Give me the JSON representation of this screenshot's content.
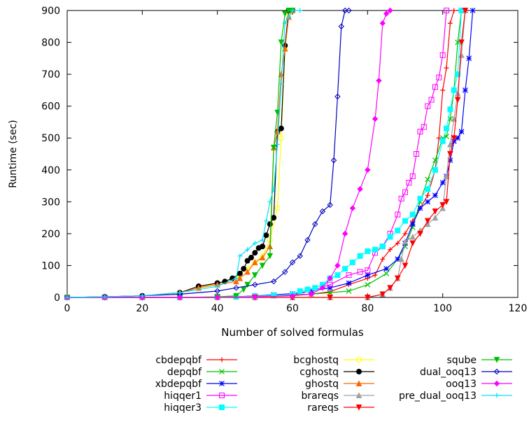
{
  "chart_data": {
    "type": "line",
    "title": "",
    "xlabel": "Number of solved formulas",
    "ylabel": "Runtime (sec)",
    "xlim": [
      0,
      120
    ],
    "ylim": [
      0,
      900
    ],
    "xticks": [
      0,
      20,
      40,
      60,
      80,
      100,
      120
    ],
    "yticks": [
      0,
      100,
      200,
      300,
      400,
      500,
      600,
      700,
      800,
      900
    ],
    "x_tick_labels": [
      "0",
      "20",
      "40",
      "60",
      "80",
      "100",
      "120"
    ],
    "y_tick_labels": [
      "0",
      "100",
      "200",
      "300",
      "400",
      "500",
      "600",
      "700",
      "800",
      "900"
    ],
    "grid": false,
    "legend_position": "bottom",
    "series": [
      {
        "name": "cbdepqbf",
        "color": "#ff0000",
        "marker": "plus",
        "x": [
          0,
          10,
          20,
          30,
          40,
          45,
          50,
          55,
          60,
          65,
          70,
          75,
          80,
          82,
          84,
          86,
          88,
          90,
          92,
          94,
          96,
          98,
          99,
          100,
          101,
          102,
          103
        ],
        "y": [
          0,
          0,
          0,
          0,
          0,
          2,
          4,
          6,
          8,
          10,
          18,
          40,
          60,
          70,
          120,
          150,
          170,
          200,
          240,
          280,
          320,
          400,
          500,
          650,
          720,
          860,
          900
        ]
      },
      {
        "name": "depqbf",
        "color": "#00c000",
        "marker": "x",
        "x": [
          0,
          10,
          20,
          30,
          40,
          45,
          50,
          55,
          60,
          65,
          70,
          75,
          80,
          85,
          88,
          90,
          92,
          94,
          96,
          98,
          100,
          101,
          102,
          103,
          104,
          105
        ],
        "y": [
          0,
          0,
          0,
          0,
          0,
          2,
          4,
          6,
          8,
          10,
          15,
          20,
          40,
          75,
          120,
          160,
          220,
          300,
          370,
          430,
          500,
          505,
          560,
          650,
          800,
          900
        ]
      },
      {
        "name": "xbdepqbf",
        "color": "#0000ff",
        "marker": "star",
        "x": [
          0,
          10,
          20,
          30,
          40,
          45,
          50,
          55,
          60,
          65,
          70,
          75,
          80,
          85,
          88,
          90,
          92,
          94,
          96,
          98,
          100,
          101,
          102,
          103,
          104,
          105,
          106,
          107,
          108
        ],
        "y": [
          0,
          0,
          0,
          0,
          0,
          2,
          5,
          8,
          12,
          20,
          30,
          45,
          70,
          90,
          120,
          170,
          230,
          280,
          300,
          320,
          360,
          380,
          430,
          490,
          500,
          520,
          650,
          750,
          900
        ]
      },
      {
        "name": "hiqqer1",
        "color": "#ff00ff",
        "marker": "square-open",
        "x": [
          0,
          10,
          20,
          30,
          40,
          45,
          50,
          55,
          60,
          65,
          70,
          75,
          78,
          80,
          82,
          84,
          86,
          88,
          89,
          90,
          91,
          92,
          93,
          94,
          95,
          96,
          97,
          98,
          99,
          100,
          101
        ],
        "y": [
          0,
          0,
          0,
          0,
          0,
          2,
          4,
          6,
          8,
          20,
          40,
          70,
          80,
          85,
          140,
          160,
          200,
          260,
          310,
          330,
          360,
          380,
          450,
          520,
          535,
          600,
          620,
          660,
          690,
          760,
          900
        ]
      },
      {
        "name": "hiqqer3",
        "color": "#00ffff",
        "marker": "square-filled",
        "x": [
          0,
          10,
          20,
          30,
          40,
          45,
          50,
          55,
          60,
          62,
          64,
          66,
          68,
          70,
          72,
          74,
          76,
          78,
          80,
          82,
          84,
          86,
          88,
          90,
          92,
          94,
          96,
          98,
          100,
          101,
          102,
          103,
          104,
          105
        ],
        "y": [
          0,
          0,
          0,
          0,
          0,
          2,
          4,
          6,
          10,
          20,
          25,
          30,
          40,
          60,
          70,
          90,
          110,
          130,
          145,
          150,
          160,
          190,
          210,
          240,
          260,
          310,
          340,
          400,
          490,
          530,
          590,
          650,
          700,
          900
        ]
      },
      {
        "name": "bcghostq",
        "color": "#ffff00",
        "marker": "circle-open",
        "x": [
          0,
          10,
          20,
          30,
          35,
          40,
          45,
          46,
          48,
          50,
          52,
          54,
          56,
          57,
          58,
          59,
          60
        ],
        "y": [
          0,
          2,
          5,
          15,
          30,
          45,
          60,
          70,
          90,
          110,
          130,
          180,
          280,
          500,
          780,
          890,
          900
        ]
      },
      {
        "name": "cghostq",
        "color": "#000000",
        "marker": "circle-filled",
        "x": [
          0,
          10,
          20,
          30,
          35,
          40,
          42,
          44,
          46,
          47,
          48,
          49,
          50,
          51,
          52,
          53,
          54,
          55,
          56,
          57,
          58,
          59,
          60
        ],
        "y": [
          0,
          2,
          5,
          15,
          35,
          45,
          50,
          60,
          75,
          90,
          115,
          125,
          140,
          155,
          160,
          195,
          230,
          250,
          520,
          530,
          790,
          900,
          900
        ]
      },
      {
        "name": "ghostq",
        "color": "#ff6600",
        "marker": "triangle-up",
        "x": [
          0,
          10,
          20,
          30,
          35,
          40,
          45,
          46,
          48,
          50,
          52,
          54,
          55,
          56,
          57,
          58,
          59,
          60
        ],
        "y": [
          0,
          2,
          5,
          15,
          30,
          40,
          50,
          60,
          80,
          110,
          125,
          160,
          470,
          520,
          700,
          780,
          880,
          900
        ]
      },
      {
        "name": "brareqs",
        "color": "#a0a0a0",
        "marker": "triangle-up",
        "x": [
          0,
          10,
          20,
          30,
          40,
          50,
          60,
          70,
          80,
          84,
          86,
          88,
          89,
          90,
          92,
          94,
          96,
          98,
          100,
          101,
          102,
          103,
          104,
          105,
          106
        ],
        "y": [
          0,
          0,
          0,
          0,
          0,
          0,
          0,
          0,
          0,
          10,
          30,
          60,
          120,
          175,
          190,
          210,
          230,
          250,
          280,
          380,
          480,
          560,
          640,
          760,
          900
        ]
      },
      {
        "name": "rareqs",
        "color": "#ff0000",
        "marker": "triangle-down",
        "x": [
          0,
          10,
          20,
          30,
          40,
          50,
          60,
          70,
          80,
          84,
          86,
          88,
          90,
          92,
          94,
          96,
          98,
          100,
          101,
          102,
          103,
          104,
          105,
          106
        ],
        "y": [
          0,
          0,
          0,
          0,
          0,
          0,
          0,
          0,
          0,
          10,
          30,
          60,
          100,
          170,
          200,
          240,
          270,
          290,
          300,
          450,
          500,
          620,
          800,
          900
        ]
      },
      {
        "name": "sqube",
        "color": "#00c000",
        "marker": "triangle-down",
        "x": [
          0,
          10,
          20,
          30,
          40,
          45,
          47,
          48,
          50,
          52,
          54,
          55,
          56,
          57,
          58,
          59,
          60
        ],
        "y": [
          0,
          0,
          0,
          0,
          2,
          5,
          25,
          40,
          70,
          100,
          130,
          470,
          580,
          800,
          890,
          900,
          900
        ]
      },
      {
        "name": "dual_ooq13",
        "color": "#0000c0",
        "marker": "diamond-open",
        "x": [
          0,
          10,
          20,
          30,
          40,
          45,
          50,
          55,
          58,
          60,
          62,
          64,
          66,
          68,
          70,
          71,
          72,
          73,
          74,
          75
        ],
        "y": [
          0,
          2,
          5,
          10,
          20,
          30,
          40,
          50,
          80,
          110,
          130,
          180,
          230,
          270,
          290,
          430,
          630,
          850,
          900,
          900
        ]
      },
      {
        "name": "ooq13",
        "color": "#ff00ff",
        "marker": "diamond-filled",
        "x": [
          0,
          10,
          20,
          30,
          40,
          50,
          60,
          65,
          68,
          70,
          72,
          74,
          76,
          78,
          80,
          82,
          83,
          84,
          85,
          86
        ],
        "y": [
          0,
          0,
          0,
          0,
          0,
          2,
          5,
          10,
          30,
          60,
          100,
          200,
          280,
          340,
          400,
          560,
          680,
          860,
          890,
          900
        ]
      },
      {
        "name": "pre_dual_ooq13",
        "color": "#00e0ff",
        "marker": "plus",
        "x": [
          0,
          10,
          20,
          30,
          40,
          45,
          46,
          48,
          50,
          52,
          53,
          54,
          55,
          56,
          57,
          58,
          59,
          60,
          62
        ],
        "y": [
          0,
          2,
          5,
          15,
          35,
          60,
          130,
          150,
          170,
          180,
          240,
          300,
          340,
          480,
          670,
          860,
          880,
          900,
          900
        ]
      }
    ]
  }
}
